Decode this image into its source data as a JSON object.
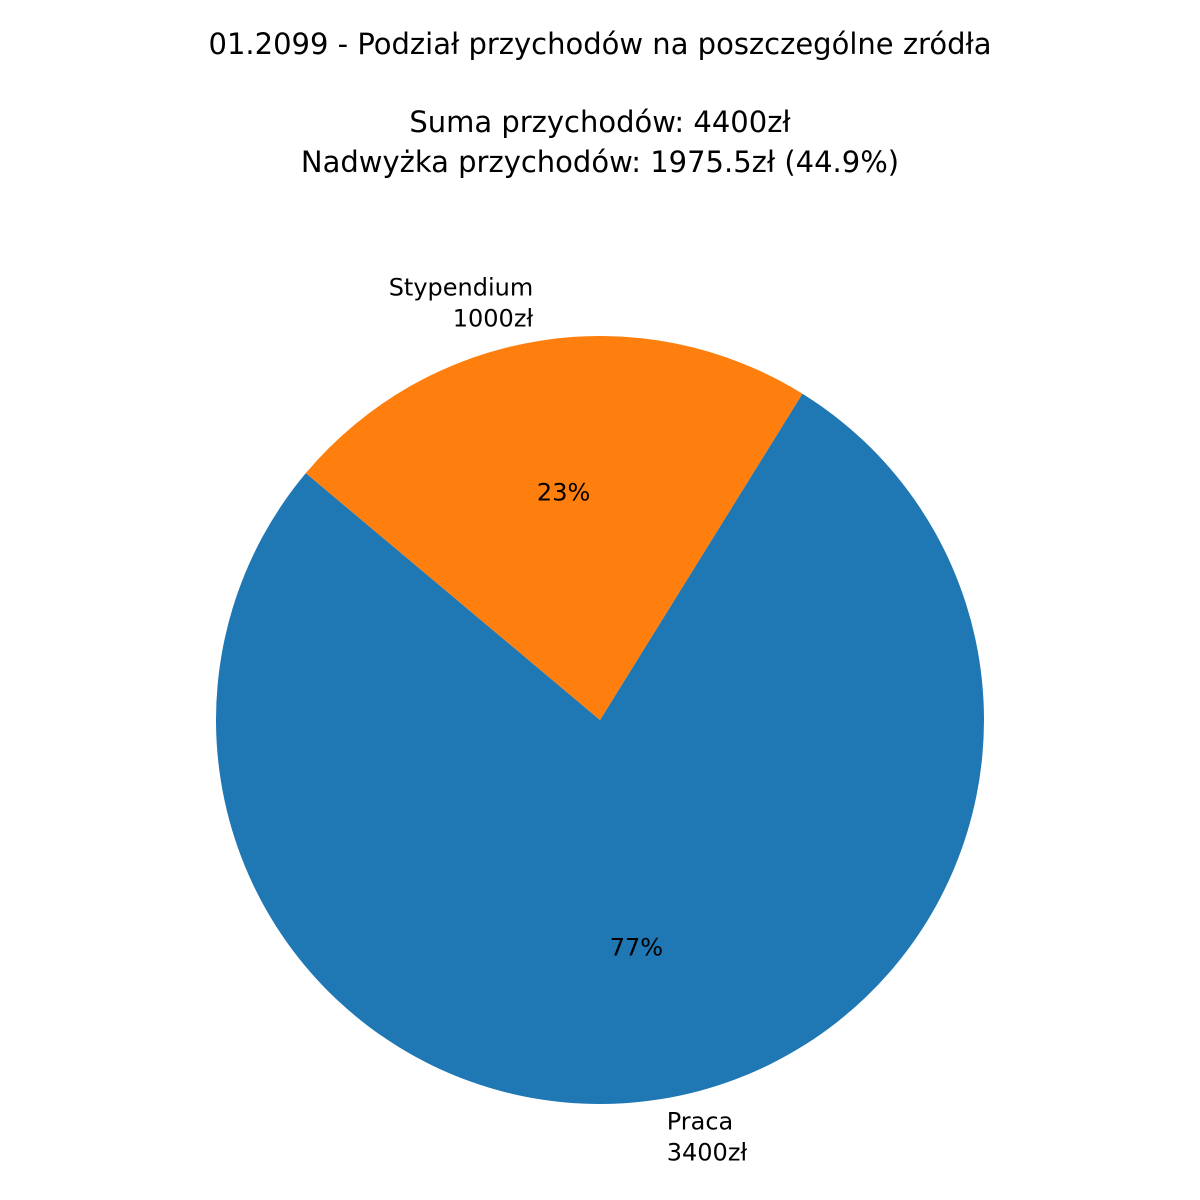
{
  "chart_data": {
    "type": "pie",
    "title": "01.2099 - Podział przychodów na poszczególne zródła",
    "subtitle_lines": [
      "Suma przychodów: 4400zł",
      "Nadwyżka przychodów: 1975.5zł (44.9%)"
    ],
    "slices": [
      {
        "name": "Praca",
        "value": 3400,
        "value_label": "3400zł",
        "percent_label": "77%",
        "color": "#1f77b4"
      },
      {
        "name": "Stypendium",
        "value": 1000,
        "value_label": "1000zł",
        "percent_label": "23%",
        "color": "#ff7f0e"
      }
    ],
    "start_angle_deg": 140,
    "direction": "counterclockwise",
    "legend": "none"
  }
}
